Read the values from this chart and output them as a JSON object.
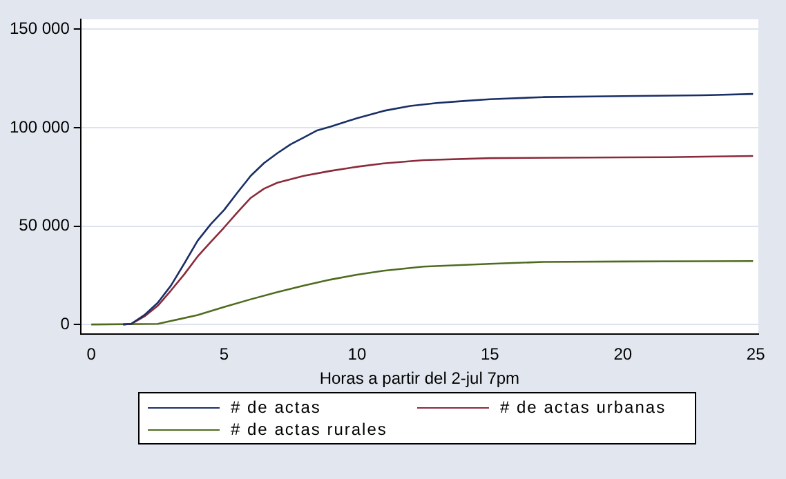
{
  "chart_data": {
    "type": "line",
    "xlabel": "Horas a partir del 2-jul 7pm",
    "xlim": [
      -0.4,
      25.1
    ],
    "xticks": [
      0,
      5,
      10,
      15,
      20,
      25
    ],
    "ylim": [
      -5000,
      155000
    ],
    "yticks": [
      0,
      {
        "value": 50000,
        "label": "50 000"
      },
      {
        "value": 100000,
        "label": "100 000"
      },
      {
        "value": 150000,
        "label": "150 000"
      }
    ],
    "grid": "y",
    "legend": "bottom",
    "marker": "none",
    "line_style": "solid",
    "series": [
      {
        "name": "# de actas",
        "color": "#1a2f66",
        "x": [
          1.2,
          1.5,
          2,
          2.5,
          3,
          3.5,
          4,
          4.5,
          5,
          5.5,
          6,
          6.5,
          7,
          7.5,
          8,
          8.5,
          9,
          10,
          11,
          12,
          13,
          14,
          15,
          17,
          20,
          23.3,
          24.9
        ],
        "values": [
          0,
          300,
          4800,
          11000,
          19800,
          31000,
          42500,
          51000,
          58200,
          67000,
          75500,
          82000,
          87000,
          91500,
          95000,
          98600,
          100500,
          104800,
          108500,
          111000,
          112500,
          113500,
          114400,
          115500,
          116000,
          116500,
          117100
        ]
      },
      {
        "name": "# de actas urbanas",
        "color": "#8b2a3a",
        "x": [
          1.2,
          1.5,
          2,
          2.5,
          3,
          3.5,
          4,
          4.5,
          5,
          5.5,
          6,
          6.5,
          7,
          8,
          9,
          10,
          11,
          12.5,
          15,
          20,
          21.7,
          24.9
        ],
        "values": [
          0,
          300,
          4100,
          9500,
          17300,
          25500,
          34500,
          42000,
          49300,
          57000,
          64300,
          69000,
          72000,
          75500,
          78000,
          80100,
          81800,
          83500,
          84500,
          84900,
          85000,
          85600
        ]
      },
      {
        "name": "# de actas rurales",
        "color": "#4e6b1e",
        "x": [
          0,
          2.5,
          3,
          4,
          5,
          6,
          7,
          8,
          9,
          10,
          11,
          12.5,
          15,
          17,
          20,
          24.9
        ],
        "values": [
          0,
          300,
          1800,
          4800,
          8900,
          12800,
          16400,
          19800,
          22800,
          25300,
          27300,
          29400,
          30800,
          31800,
          32000,
          32200
        ]
      }
    ]
  }
}
